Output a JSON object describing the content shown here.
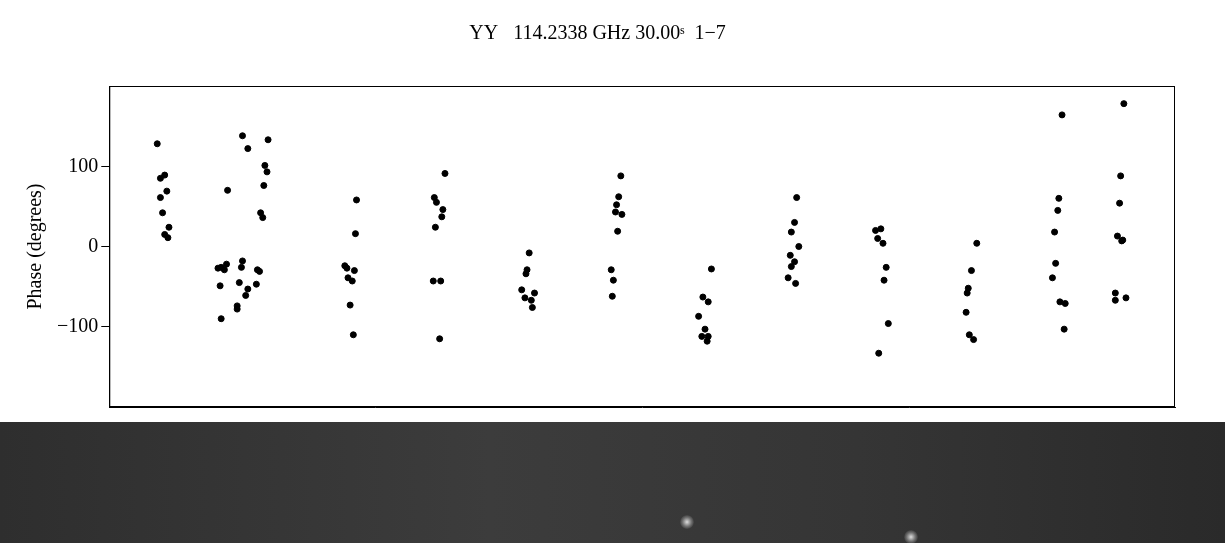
{
  "chart_data": {
    "type": "scatter",
    "title": "YY   114.2338 GHz 30.00ˢ  1−7",
    "y_label": "Phase (degrees)",
    "color": "#000000",
    "marker": "circle",
    "grid": false,
    "tick_labels": "y",
    "xlim": [
      0,
      100
    ],
    "ylim": [
      -200,
      200
    ],
    "yticks": [
      {
        "value": -100,
        "label": "−100"
      },
      0,
      100
    ],
    "x": [
      4.5,
      4.8,
      5.2,
      5.4,
      4.8,
      5.0,
      5.6,
      5.2,
      5.5,
      10.2,
      10.5,
      10.8,
      11.0,
      10.4,
      10.5,
      11.1,
      12.0,
      12.0,
      12.2,
      12.4,
      12.5,
      12.8,
      13.0,
      13.8,
      13.9,
      14.1,
      12.5,
      13.0,
      14.9,
      14.6,
      14.8,
      14.5,
      14.2,
      14.4,
      22.1,
      22.3,
      22.4,
      22.8,
      23.0,
      22.6,
      22.9,
      23.1,
      23.2,
      30.5,
      30.7,
      30.6,
      31.2,
      31.3,
      31.5,
      30.4,
      31.1,
      31.0,
      39.4,
      39.2,
      39.1,
      38.7,
      39.0,
      39.6,
      39.9,
      39.7,
      48.0,
      47.8,
      47.6,
      48.1,
      47.5,
      47.7,
      47.1,
      47.3,
      47.2,
      56.5,
      55.7,
      56.2,
      55.3,
      55.9,
      55.6,
      56.2,
      56.1,
      64.5,
      64.3,
      64.0,
      64.7,
      63.9,
      64.3,
      64.0,
      63.7,
      64.4,
      71.9,
      72.4,
      72.1,
      72.6,
      72.9,
      72.7,
      73.1,
      72.2,
      81.4,
      80.9,
      80.6,
      80.5,
      80.4,
      80.7,
      81.1,
      89.4,
      89.1,
      89.0,
      88.7,
      88.8,
      88.5,
      89.2,
      89.7,
      89.6,
      95.2,
      94.9,
      94.8,
      94.6,
      95.1,
      95.0,
      94.4,
      94.4,
      95.4
    ],
    "values": [
      128,
      85,
      89,
      69,
      61,
      42,
      24,
      15,
      11,
      -27,
      -26,
      -29,
      -22,
      -49,
      -90,
      70,
      -74,
      -78,
      -45,
      -26,
      -18,
      -61,
      -53,
      -47,
      -29,
      -31,
      138,
      122,
      133,
      101,
      93,
      76,
      42,
      36,
      -24,
      -27,
      -39,
      -43,
      -30,
      -73,
      -110,
      16,
      58,
      61,
      55,
      24,
      37,
      46,
      91,
      -43,
      -43,
      -115,
      -8,
      -29,
      -34,
      -54,
      -64,
      -67,
      -58,
      -76,
      88,
      62,
      52,
      40,
      43,
      19,
      -29,
      -42,
      -62,
      -28,
      -63,
      -69,
      -87,
      -103,
      -112,
      -112,
      -118,
      61,
      30,
      18,
      0,
      -11,
      -19,
      -25,
      -39,
      -46,
      20,
      22,
      10,
      4,
      -26,
      -42,
      -96,
      -133,
      4,
      -30,
      -52,
      -58,
      -82,
      -110,
      -116,
      164,
      60,
      45,
      18,
      -21,
      -39,
      -69,
      -71,
      -103,
      178,
      88,
      54,
      13,
      8,
      7,
      -58,
      -67,
      -64
    ]
  }
}
